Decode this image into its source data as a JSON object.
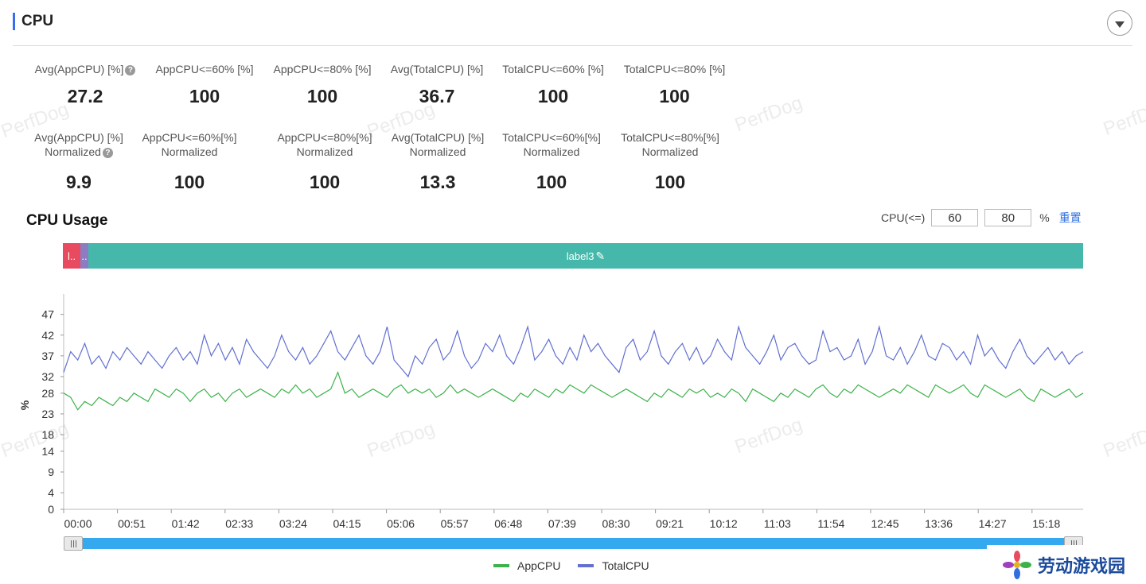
{
  "header": {
    "title": "CPU"
  },
  "metrics_row1": [
    {
      "label": "Avg(AppCPU) [%]",
      "value": "27.2",
      "help": true
    },
    {
      "label": "AppCPU<=60% [%]",
      "value": "100"
    },
    {
      "label": "AppCPU<=80% [%]",
      "value": "100"
    },
    {
      "label": "Avg(TotalCPU) [%]",
      "value": "36.7"
    },
    {
      "label": "TotalCPU<=60% [%]",
      "value": "100"
    },
    {
      "label": "TotalCPU<=80% [%]",
      "value": "100"
    }
  ],
  "metrics_row2": [
    {
      "label": "Avg(AppCPU) [%]",
      "sub": "Normalized",
      "value": "9.9",
      "help": true
    },
    {
      "label": "AppCPU<=60%[%]",
      "sub": "Normalized",
      "value": "100"
    },
    {
      "label": "AppCPU<=80%[%]",
      "sub": "Normalized",
      "value": "100"
    },
    {
      "label": "Avg(TotalCPU) [%]",
      "sub": "Normalized",
      "value": "13.3"
    },
    {
      "label": "TotalCPU<=60%[%]",
      "sub": "Normalized",
      "value": "100"
    },
    {
      "label": "TotalCPU<=80%[%]",
      "sub": "Normalized",
      "value": "100"
    }
  ],
  "watermark": "PerfDog",
  "usage": {
    "title": "CPU Usage",
    "threshold_label": "CPU(<=)",
    "threshold1": "60",
    "threshold2": "80",
    "unit": "%",
    "reset": "重置"
  },
  "labels": [
    {
      "text": "l..",
      "color": "#e84a5f"
    },
    {
      "text": "..",
      "color": "#8e7cc3"
    },
    {
      "text": "label3",
      "color": "#45b8ab"
    }
  ],
  "icons": {
    "collapse": "chevron-down-icon",
    "help": "question-circle-icon",
    "edit": "pencil-icon"
  },
  "chart_data": {
    "type": "line",
    "ylabel": "%",
    "y_ticks": [
      0,
      4,
      9,
      14,
      18,
      23,
      28,
      32,
      37,
      42,
      47
    ],
    "ylim": [
      0,
      50
    ],
    "x_ticks": [
      "00:00",
      "00:51",
      "01:42",
      "02:33",
      "03:24",
      "04:15",
      "05:06",
      "05:57",
      "06:48",
      "07:39",
      "08:30",
      "09:21",
      "10:12",
      "11:03",
      "11:54",
      "12:45",
      "13:36",
      "14:27",
      "15:18"
    ],
    "x_range_seconds": [
      0,
      960
    ],
    "grid": false,
    "legend_position": "bottom",
    "series": [
      {
        "name": "AppCPU",
        "color": "#3cb24a",
        "mean": 27.2,
        "min": 23,
        "max": 34,
        "values": [
          28,
          27,
          24,
          26,
          25,
          27,
          26,
          25,
          27,
          26,
          28,
          27,
          26,
          29,
          28,
          27,
          29,
          28,
          26,
          28,
          29,
          27,
          28,
          26,
          28,
          29,
          27,
          28,
          29,
          28,
          27,
          29,
          28,
          30,
          28,
          29,
          27,
          28,
          29,
          33,
          28,
          29,
          27,
          28,
          29,
          28,
          27,
          29,
          30,
          28,
          29,
          28,
          29,
          27,
          28,
          30,
          28,
          29,
          28,
          27,
          28,
          29,
          28,
          27,
          26,
          28,
          27,
          29,
          28,
          27,
          29,
          28,
          30,
          29,
          28,
          30,
          29,
          28,
          27,
          28,
          29,
          28,
          27,
          26,
          28,
          27,
          29,
          28,
          27,
          29,
          28,
          29,
          27,
          28,
          27,
          29,
          28,
          26,
          29,
          28,
          27,
          26,
          28,
          27,
          29,
          28,
          27,
          29,
          30,
          28,
          27,
          29,
          28,
          30,
          29,
          28,
          27,
          28,
          29,
          28,
          30,
          29,
          28,
          27,
          30,
          29,
          28,
          29,
          30,
          28,
          27,
          30,
          29,
          28,
          27,
          28,
          29,
          27,
          26,
          29,
          28,
          27,
          28,
          29,
          27,
          28
        ]
      },
      {
        "name": "TotalCPU",
        "color": "#6270d0",
        "mean": 36.7,
        "min": 29,
        "max": 47,
        "values": [
          33,
          38,
          36,
          40,
          35,
          37,
          34,
          38,
          36,
          39,
          37,
          35,
          38,
          36,
          34,
          37,
          39,
          36,
          38,
          35,
          42,
          37,
          40,
          36,
          39,
          35,
          41,
          38,
          36,
          34,
          37,
          42,
          38,
          36,
          39,
          35,
          37,
          40,
          43,
          38,
          36,
          39,
          42,
          37,
          35,
          38,
          44,
          36,
          34,
          32,
          37,
          35,
          39,
          41,
          36,
          38,
          43,
          37,
          34,
          36,
          40,
          38,
          42,
          37,
          35,
          39,
          44,
          36,
          38,
          41,
          37,
          35,
          39,
          36,
          42,
          38,
          40,
          37,
          35,
          33,
          39,
          41,
          36,
          38,
          43,
          37,
          35,
          38,
          40,
          36,
          39,
          35,
          37,
          41,
          38,
          36,
          44,
          39,
          37,
          35,
          38,
          42,
          36,
          39,
          40,
          37,
          35,
          36,
          43,
          38,
          39,
          36,
          37,
          41,
          35,
          38,
          44,
          37,
          36,
          39,
          35,
          38,
          42,
          37,
          36,
          40,
          39,
          36,
          38,
          35,
          42,
          37,
          39,
          36,
          34,
          38,
          41,
          37,
          35,
          37,
          39,
          36,
          38,
          35,
          37,
          38
        ]
      }
    ]
  },
  "legend": [
    {
      "name": "AppCPU",
      "color": "#3cb24a"
    },
    {
      "name": "TotalCPU",
      "color": "#6270d0"
    }
  ],
  "brand": {
    "text": "劳动游戏园"
  }
}
